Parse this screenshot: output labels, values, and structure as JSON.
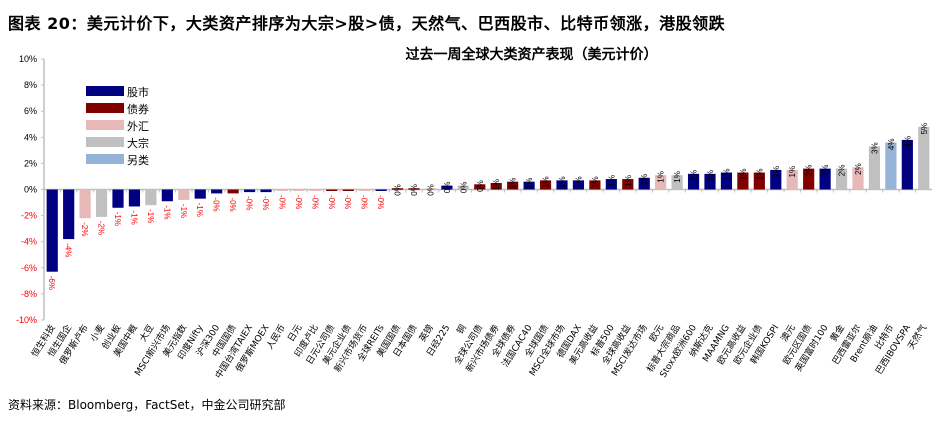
{
  "figure_title": "图表 20：美元计价下，大类资产排序为大宗>股>债，天然气、巴西股市、比特币领涨，港股领跌",
  "source": "资料来源：Bloomberg，FactSet，中金公司研究部",
  "colors": {
    "股市": "#000080",
    "债券": "#800000",
    "外汇": "#E6B9B8",
    "大宗": "#C0C0C0",
    "另类": "#95B3D7",
    "neg_label": "#FF0000",
    "pos_label": "#000000"
  },
  "chart_data": {
    "type": "bar",
    "title": "过去一周全球大类资产表现（美元计价）",
    "xlabel": "",
    "ylabel": "",
    "ylim": [
      -10,
      10
    ],
    "yticks": [
      "10%",
      "8%",
      "6%",
      "4%",
      "2%",
      "0%",
      "-2%",
      "-4%",
      "-6%",
      "-8%",
      "-10%"
    ],
    "grid": false,
    "legend": {
      "position": "upper-left",
      "entries": [
        "股市",
        "债券",
        "外汇",
        "大宗",
        "另类"
      ]
    },
    "categories": [
      "恒生科技",
      "恒生国企",
      "俄罗斯卢布",
      "小麦",
      "创业板",
      "美国中概",
      "大豆",
      "MSCI新兴市场",
      "美元指数",
      "印度Nifty",
      "沪深300",
      "中国国债",
      "中国台湾TAIEX",
      "俄罗斯MOEX",
      "人民币",
      "日元",
      "印度卢比",
      "日元公司债",
      "美元企业债",
      "新兴市场货币",
      "全球REITs",
      "美国国债",
      "日本国债",
      "英镑",
      "日经225",
      "铜",
      "全球公司债",
      "新兴市场债券",
      "全球债券",
      "法国CAC40",
      "全球国债",
      "MSCI全球市场",
      "德国DAX",
      "美元高收益",
      "标普500",
      "全球高收益",
      "MSCI发达市场",
      "欧元",
      "标普大宗商品",
      "Stoxx欧洲600",
      "纳斯达克",
      "MAAMNG",
      "欧元高收益",
      "欧元企业债",
      "韩国KOSPI",
      "澳元",
      "欧元区国债",
      "英国富时100",
      "黄金",
      "巴西雷亚尔",
      "Brent原油",
      "比特币",
      "巴西IBOVSPA",
      "天然气"
    ],
    "values": [
      -6.3,
      -3.8,
      -2.2,
      -2.1,
      -1.4,
      -1.3,
      -1.2,
      -0.9,
      -0.8,
      -0.7,
      -0.3,
      -0.3,
      -0.2,
      -0.2,
      -0.1,
      -0.1,
      -0.1,
      -0.1,
      -0.1,
      -0.05,
      -0.05,
      0.1,
      0.1,
      0.1,
      0.3,
      0.3,
      0.4,
      0.5,
      0.6,
      0.6,
      0.7,
      0.7,
      0.7,
      0.7,
      0.8,
      0.8,
      0.9,
      1.1,
      1.1,
      1.2,
      1.2,
      1.3,
      1.3,
      1.3,
      1.5,
      1.5,
      1.6,
      1.6,
      1.6,
      1.7,
      3.3,
      3.6,
      3.8,
      4.8
    ],
    "labels": [
      "-6%",
      "-4%",
      "-2%",
      "-2%",
      "-1%",
      "-1%",
      "-1%",
      "-1%",
      "-1%",
      "-1%",
      "-0%",
      "-0%",
      "-0%",
      "-0%",
      "-0%",
      "-0%",
      "-0%",
      "-0%",
      "-0%",
      "-0%",
      "-0%",
      "0%",
      "0%",
      "0%",
      "0%",
      "0%",
      "0%",
      "1%",
      "1%",
      "1%",
      "1%",
      "1%",
      "1%",
      "1%",
      "1%",
      "1%",
      "1%",
      "1%",
      "1%",
      "1%",
      "1%",
      "1%",
      "1%",
      "1%",
      "1%",
      "1%",
      "2%",
      "2%",
      "2%",
      "2%",
      "3%",
      "4%",
      "4%",
      "5%"
    ],
    "asset_class": [
      "股市",
      "股市",
      "外汇",
      "大宗",
      "股市",
      "股市",
      "大宗",
      "股市",
      "外汇",
      "股市",
      "股市",
      "债券",
      "股市",
      "股市",
      "外汇",
      "外汇",
      "外汇",
      "债券",
      "债券",
      "外汇",
      "股市",
      "债券",
      "债券",
      "外汇",
      "股市",
      "大宗",
      "债券",
      "债券",
      "债券",
      "股市",
      "债券",
      "股市",
      "股市",
      "债券",
      "股市",
      "债券",
      "股市",
      "外汇",
      "大宗",
      "股市",
      "股市",
      "股市",
      "债券",
      "债券",
      "股市",
      "外汇",
      "债券",
      "股市",
      "大宗",
      "外汇",
      "大宗",
      "另类",
      "股市",
      "大宗"
    ]
  }
}
